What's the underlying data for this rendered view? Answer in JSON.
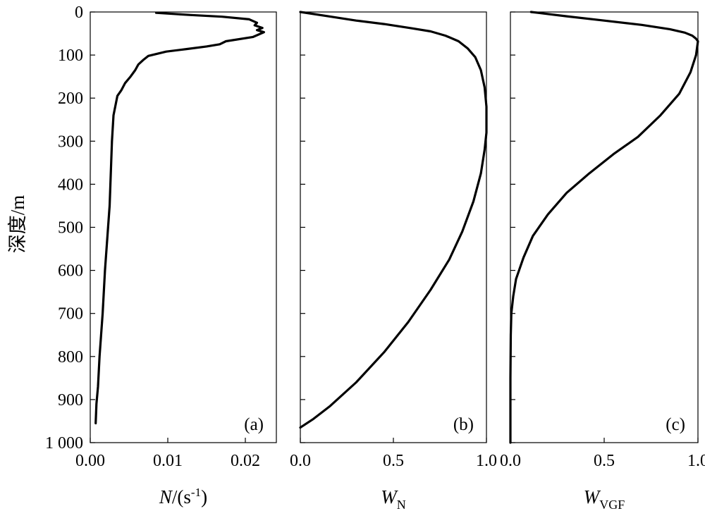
{
  "chart_data": [
    {
      "type": "line",
      "panel_label": "(a)",
      "xlabel": {
        "italic": "N",
        "rest": "/(s",
        "sup": "-1",
        "close": ")"
      },
      "ylabel": "深度/m",
      "xlim": [
        0,
        0.024
      ],
      "ylim": [
        0,
        1000
      ],
      "y_inverted": true,
      "xticks": [
        "0.00",
        "0.01",
        "0.02"
      ],
      "xtick_values": [
        0,
        0.01,
        0.02
      ],
      "yticks": [
        "0",
        "100",
        "200",
        "300",
        "400",
        "500",
        "600",
        "700",
        "800",
        "900",
        "1 000"
      ],
      "ytick_values": [
        0,
        100,
        200,
        300,
        400,
        500,
        600,
        700,
        800,
        900,
        1000
      ],
      "series": [
        {
          "x": [
            0.0085,
            0.013,
            0.017,
            0.0205,
            0.0215,
            0.0212,
            0.0222,
            0.0215,
            0.0224,
            0.021,
            0.0175,
            0.0167,
            0.015,
            0.0125,
            0.0098,
            0.0075,
            0.0068,
            0.0062,
            0.0058,
            0.0052,
            0.0045,
            0.004,
            0.0035,
            0.003,
            0.0028,
            0.0027,
            0.0026,
            0.0025,
            0.0023,
            0.0019,
            0.0016,
            0.0012,
            0.001,
            0.0008,
            0.0007
          ],
          "y": [
            2,
            7,
            11,
            17,
            25,
            31,
            37,
            42,
            47,
            58,
            68,
            75,
            80,
            86,
            92,
            102,
            112,
            122,
            135,
            150,
            165,
            182,
            195,
            240,
            300,
            350,
            400,
            450,
            500,
            600,
            700,
            800,
            870,
            910,
            955
          ]
        }
      ]
    },
    {
      "type": "line",
      "panel_label": "(b)",
      "xlabel": {
        "italic": "W",
        "sub": "N"
      },
      "xlim": [
        0,
        1
      ],
      "ylim": [
        0,
        1000
      ],
      "y_inverted": true,
      "xticks": [
        "0.0",
        "0.5",
        "1.0"
      ],
      "xtick_values": [
        0,
        0.5,
        1
      ],
      "series": [
        {
          "x": [
            0,
            0.15,
            0.3,
            0.45,
            0.6,
            0.7,
            0.78,
            0.85,
            0.9,
            0.94,
            0.97,
            0.99,
            1.0,
            1.0,
            0.99,
            0.97,
            0.93,
            0.87,
            0.8,
            0.7,
            0.58,
            0.45,
            0.3,
            0.16,
            0.07,
            0
          ],
          "y": [
            0,
            10,
            20,
            28,
            38,
            45,
            55,
            68,
            85,
            105,
            135,
            175,
            220,
            280,
            320,
            375,
            440,
            510,
            575,
            645,
            720,
            790,
            860,
            915,
            945,
            965
          ]
        }
      ]
    },
    {
      "type": "line",
      "panel_label": "(c)",
      "xlabel": {
        "italic": "W",
        "sub": "VGF"
      },
      "xlim": [
        0,
        1
      ],
      "ylim": [
        0,
        1000
      ],
      "y_inverted": true,
      "xticks": [
        "0.0",
        "0.5",
        "1.0"
      ],
      "xtick_values": [
        0,
        0.5,
        1
      ],
      "series": [
        {
          "x": [
            0.11,
            0.3,
            0.5,
            0.7,
            0.85,
            0.93,
            0.97,
            0.99,
            1.0,
            0.99,
            0.96,
            0.9,
            0.8,
            0.68,
            0.55,
            0.42,
            0.3,
            0.2,
            0.12,
            0.07,
            0.03,
            0.015,
            0.005,
            0.002,
            0,
            0
          ],
          "y": [
            0,
            10,
            20,
            30,
            40,
            48,
            55,
            62,
            68,
            100,
            140,
            190,
            240,
            290,
            330,
            375,
            420,
            470,
            520,
            570,
            620,
            660,
            700,
            750,
            850,
            1000
          ]
        }
      ]
    }
  ]
}
